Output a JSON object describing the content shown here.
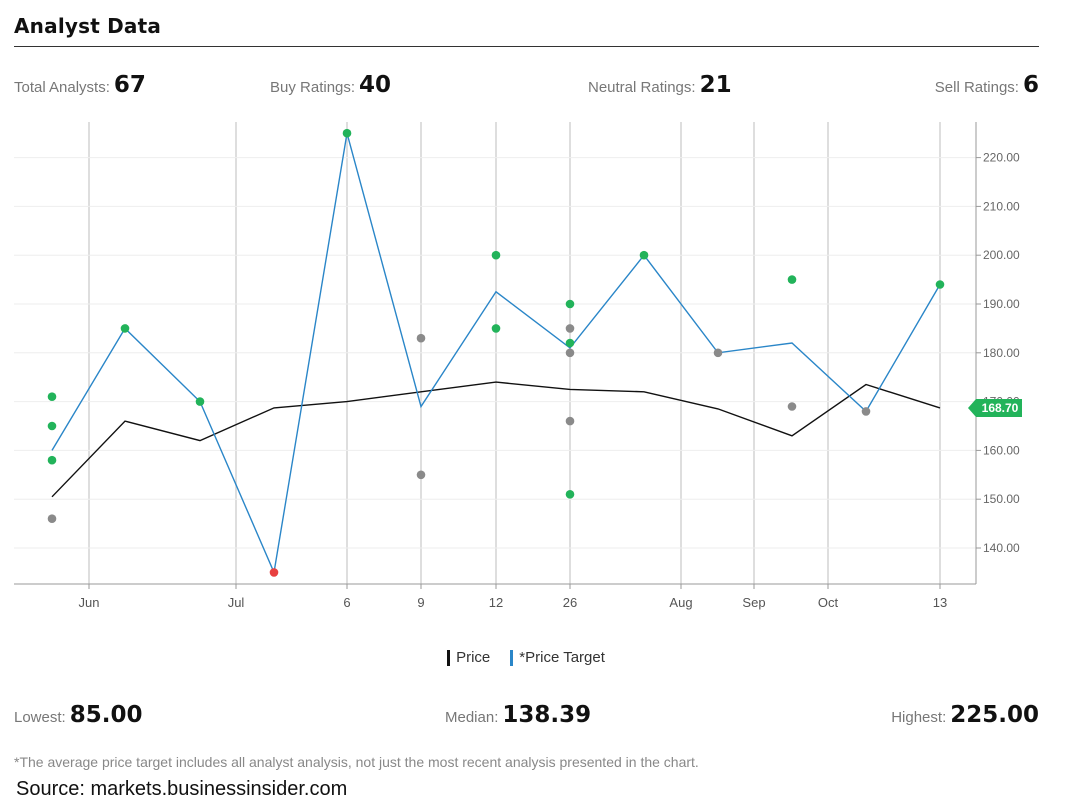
{
  "title": "Analyst Data",
  "stats": {
    "total_label": "Total Analysts:",
    "total_value": "67",
    "buy_label": "Buy Ratings:",
    "buy_value": "40",
    "neutral_label": "Neutral Ratings:",
    "neutral_value": "21",
    "sell_label": "Sell Ratings:",
    "sell_value": "6"
  },
  "summary": {
    "lowest_label": "Lowest:",
    "lowest_value": "85.00",
    "median_label": "Median:",
    "median_value": "138.39",
    "highest_label": "Highest:",
    "highest_value": "225.00"
  },
  "legend": {
    "price": "Price",
    "target": "*Price Target"
  },
  "footnote": "*The average price target includes all analyst analysis, not just the most recent analysis presented in the chart.",
  "source": "Source: markets.businessinsider.com",
  "colors": {
    "price": "#111111",
    "target": "#2a86c8",
    "buy": "#22b35a",
    "neutral": "#8a8a8a",
    "sell": "#e84040",
    "grid": "#d4d4d4"
  },
  "chart_data": {
    "type": "line",
    "x_ticks": [
      "Jun",
      "Jul",
      "6",
      "9",
      "12",
      "26",
      "Aug",
      "Sep",
      "Oct",
      "13"
    ],
    "y_ticks": [
      "140.00",
      "150.00",
      "160.00",
      "170.00",
      "180.00",
      "190.00",
      "200.00",
      "210.00",
      "220.00"
    ],
    "ylim": [
      133,
      230
    ],
    "current_price_label": "168.70",
    "series": [
      {
        "name": "Price",
        "x": [
          0,
          2,
          4,
          6,
          7,
          8,
          9,
          10,
          11,
          12,
          13,
          14,
          15,
          16
        ],
        "values": [
          150.5,
          166,
          162,
          168.7,
          170,
          172,
          174,
          172.5,
          172,
          168.5,
          163,
          173.5,
          168.7,
          168.7
        ]
      },
      {
        "name": "*Price Target",
        "x": [
          0,
          2,
          4,
          6,
          7,
          8,
          9,
          10,
          11,
          12,
          13,
          14,
          15,
          16
        ],
        "values": [
          160,
          185,
          170,
          135,
          225,
          169,
          192.5,
          181,
          200,
          180,
          182,
          168,
          194,
          194
        ]
      }
    ],
    "ratings": [
      {
        "x": 0,
        "value": 171,
        "rating": "buy"
      },
      {
        "x": 0,
        "value": 165,
        "rating": "buy"
      },
      {
        "x": 0,
        "value": 158,
        "rating": "buy"
      },
      {
        "x": 0,
        "value": 146,
        "rating": "neutral"
      },
      {
        "x": 2,
        "value": 185,
        "rating": "buy"
      },
      {
        "x": 4,
        "value": 170,
        "rating": "buy"
      },
      {
        "x": 6,
        "value": 135,
        "rating": "sell"
      },
      {
        "x": 7,
        "value": 225,
        "rating": "buy"
      },
      {
        "x": 8,
        "value": 183,
        "rating": "neutral"
      },
      {
        "x": 8,
        "value": 155,
        "rating": "neutral"
      },
      {
        "x": 9,
        "value": 200,
        "rating": "buy"
      },
      {
        "x": 9,
        "value": 185,
        "rating": "buy"
      },
      {
        "x": 10,
        "value": 190,
        "rating": "buy"
      },
      {
        "x": 10,
        "value": 185,
        "rating": "neutral"
      },
      {
        "x": 10,
        "value": 182,
        "rating": "buy"
      },
      {
        "x": 10,
        "value": 180,
        "rating": "neutral"
      },
      {
        "x": 10,
        "value": 166,
        "rating": "neutral"
      },
      {
        "x": 10,
        "value": 151,
        "rating": "buy"
      },
      {
        "x": 11,
        "value": 200,
        "rating": "buy"
      },
      {
        "x": 12,
        "value": 180,
        "rating": "neutral"
      },
      {
        "x": 13,
        "value": 195,
        "rating": "buy"
      },
      {
        "x": 13,
        "value": 169,
        "rating": "neutral"
      },
      {
        "x": 14,
        "value": 168,
        "rating": "neutral"
      },
      {
        "x": 15,
        "value": 194,
        "rating": "buy"
      }
    ]
  }
}
